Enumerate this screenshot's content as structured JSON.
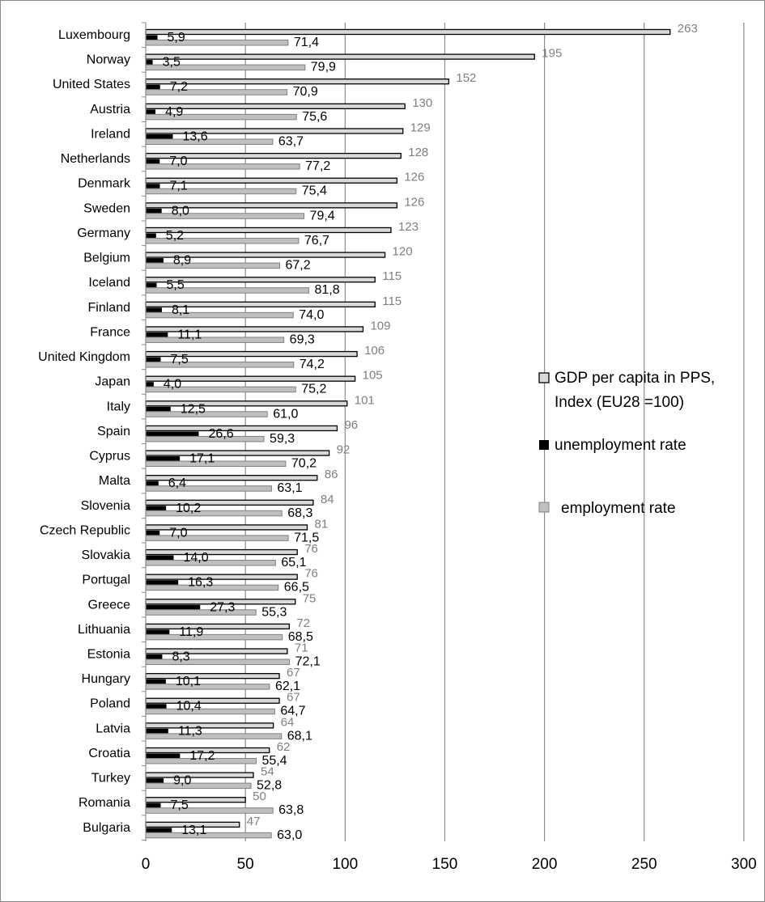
{
  "chart_data": {
    "type": "bar",
    "orientation": "horizontal",
    "categories": [
      "Luxembourg",
      "Norway",
      "United States",
      "Austria",
      "Ireland",
      "Netherlands",
      "Denmark",
      "Sweden",
      "Germany",
      "Belgium",
      "Iceland",
      "Finland",
      "France",
      "United Kingdom",
      "Japan",
      "Italy",
      "Spain",
      "Cyprus",
      "Malta",
      "Slovenia",
      "Czech Republic",
      "Slovakia",
      "Portugal",
      "Greece",
      "Lithuania",
      "Estonia",
      "Hungary",
      "Poland",
      "Latvia",
      "Croatia",
      "Turkey",
      "Romania",
      "Bulgaria"
    ],
    "series": [
      {
        "name": "GDP per capita in PPS, Index (EU28 =100)",
        "legend_lines": [
          "GDP per capita in PPS,",
          "Index (EU28 =100)"
        ],
        "color": "#d9d9d9",
        "values": [
          263,
          195,
          152,
          130,
          129,
          128,
          126,
          126,
          123,
          120,
          115,
          115,
          109,
          106,
          105,
          101,
          96,
          92,
          86,
          84,
          81,
          76,
          76,
          75,
          72,
          71,
          67,
          67,
          64,
          62,
          54,
          50,
          47
        ],
        "labels": [
          "263",
          "195",
          "152",
          "130",
          "129",
          "128",
          "126",
          "126",
          "123",
          "120",
          "115",
          "115",
          "109",
          "106",
          "105",
          "101",
          "96",
          "92",
          "86",
          "84",
          "81",
          "76",
          "76",
          "75",
          "72",
          "71",
          "67",
          "67",
          "64",
          "62",
          "54",
          "50",
          "47"
        ]
      },
      {
        "name": "unemployment rate",
        "color": "#000000",
        "values": [
          5.9,
          3.5,
          7.2,
          4.9,
          13.6,
          7.0,
          7.1,
          8.0,
          5.2,
          8.9,
          5.5,
          8.1,
          11.1,
          7.5,
          4.0,
          12.5,
          26.6,
          17.1,
          6.4,
          10.2,
          7.0,
          14.0,
          16.3,
          27.3,
          11.9,
          8.3,
          10.1,
          10.4,
          11.3,
          17.2,
          9.0,
          7.5,
          13.1
        ],
        "labels": [
          "5,9",
          "3,5",
          "7,2",
          "4,9",
          "13,6",
          "7,0",
          "7,1",
          "8,0",
          "5,2",
          "8,9",
          "5,5",
          "8,1",
          "11,1",
          "7,5",
          "4,0",
          "12,5",
          "26,6",
          "17,1",
          "6,4",
          "10,2",
          "7,0",
          "14,0",
          "16,3",
          "27,3",
          "11,9",
          "8,3",
          "10,1",
          "10,4",
          "11,3",
          "17,2",
          "9,0",
          "7,5",
          "13,1"
        ]
      },
      {
        "name": "employment rate",
        "color": "#bfbfbf",
        "values": [
          71.4,
          79.9,
          70.9,
          75.6,
          63.7,
          77.2,
          75.4,
          79.4,
          76.7,
          67.2,
          81.8,
          74.0,
          69.3,
          74.2,
          75.2,
          61.0,
          59.3,
          70.2,
          63.1,
          68.3,
          71.5,
          65.1,
          66.5,
          55.3,
          68.5,
          72.1,
          62.1,
          64.7,
          68.1,
          55.4,
          52.8,
          63.8,
          63.0
        ],
        "labels": [
          "71,4",
          "79,9",
          "70,9",
          "75,6",
          "63,7",
          "77,2",
          "75,4",
          "79,4",
          "76,7",
          "67,2",
          "81,8",
          "74,0",
          "69,3",
          "74,2",
          "75,2",
          "61,0",
          "59,3",
          "70,2",
          "63,1",
          "68,3",
          "71,5",
          "65,1",
          "66,5",
          "55,3",
          "68,5",
          "72,1",
          "62,1",
          "64,7",
          "68,1",
          "55,4",
          "52,8",
          "63,8",
          "63,0"
        ]
      }
    ],
    "xlim": [
      0,
      300
    ],
    "xticks": [
      0,
      50,
      100,
      150,
      200,
      250,
      300
    ],
    "xtick_labels": [
      "0",
      "50",
      "100",
      "150",
      "200",
      "250",
      "300"
    ],
    "grid": "vertical",
    "legend_position": "right"
  }
}
